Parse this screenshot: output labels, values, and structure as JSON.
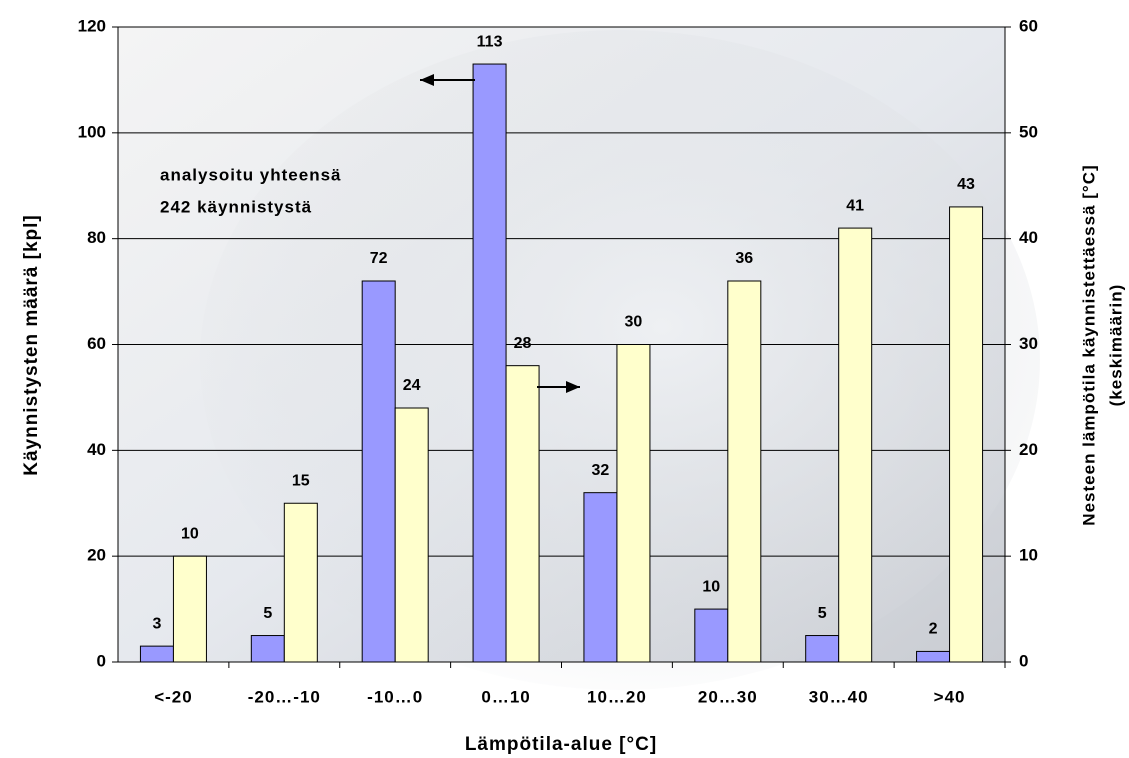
{
  "chart_data": {
    "type": "bar",
    "categories": [
      "<-20",
      "-20…-10",
      "-10…0",
      "0…10",
      "10…20",
      "20…30",
      "30…40",
      ">40"
    ],
    "series": [
      {
        "name": "Käynnistysten määrä",
        "color": "#9999ff",
        "values": [
          3,
          5,
          72,
          113,
          32,
          10,
          5,
          2
        ]
      },
      {
        "name": "Nesteen lämpötila",
        "color": "#ffffcc",
        "axis": "y2",
        "values": [
          10,
          15,
          24,
          28,
          30,
          36,
          41,
          43
        ]
      }
    ],
    "ylim": [
      0,
      120
    ],
    "yticks": [
      0,
      20,
      40,
      60,
      80,
      100,
      120
    ],
    "y2lim": [
      0,
      60
    ],
    "y2ticks": [
      0,
      10,
      20,
      30,
      40,
      50,
      60
    ],
    "grid": true,
    "xlabel": "Lämpötila-alue [°C]",
    "ylabel": "Käynnistysten määrä [kpl]",
    "y2label": [
      "Nesteen lämpötila käynnistettäessä [°C]",
      "(keskimäärin)"
    ],
    "annotations": [
      "analysoitu yhteensä",
      "242 käynnistystä"
    ]
  }
}
